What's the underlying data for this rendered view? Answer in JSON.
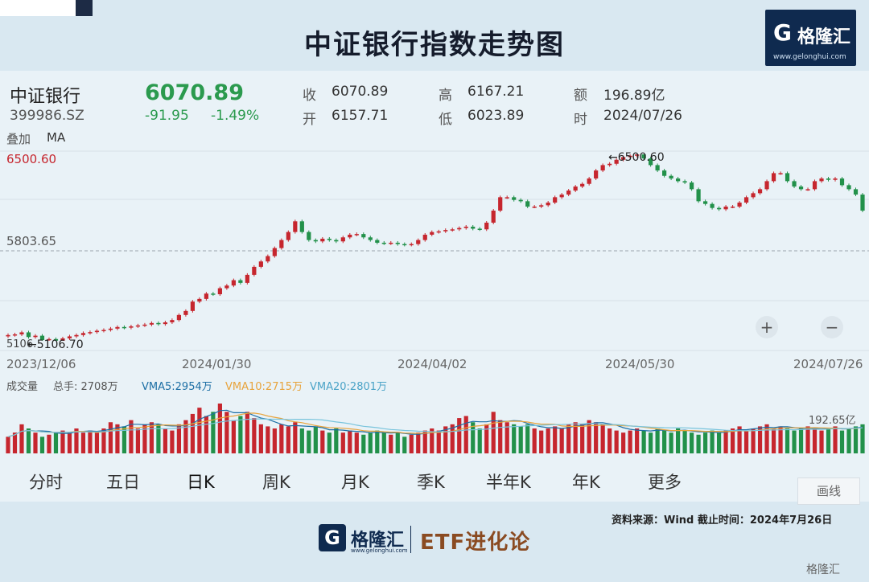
{
  "title": "中证银行指数走势图",
  "brand": {
    "mark": "G",
    "name": "格隆汇",
    "url": "www.gelonghui.com"
  },
  "quote": {
    "name": "中证银行",
    "code": "399986.SZ",
    "price": "6070.89",
    "change": "-91.95",
    "change_pct": "-1.49%",
    "close_label": "收",
    "close": "6070.89",
    "high_label": "高",
    "high": "6167.21",
    "amount_label": "额",
    "amount": "196.89亿",
    "open_label": "开",
    "open": "6157.71",
    "low_label": "低",
    "low": "6023.89",
    "time_label": "时",
    "time": "2024/07/26",
    "overlay_label": "叠加",
    "ma_label": "MA"
  },
  "colors": {
    "up": "#c6262e",
    "down": "#22914a",
    "vma5": "#1d6fa5",
    "vma10": "#e8a33b",
    "vma20": "#79c4dc"
  },
  "chart_data": {
    "type": "candlestick",
    "ylim": [
      5106.7,
      6500.6
    ],
    "ytick_labels": [
      "6500.60",
      "5803.65"
    ],
    "x_labels": [
      "2023/12/06",
      "2024/01/30",
      "2024/04/02",
      "2024/05/30",
      "2024/07/26"
    ],
    "max_annotation": "←6500.60",
    "min_annotation": "←5106.70",
    "min_label_left": "5106.",
    "closes": [
      5150,
      5155,
      5170,
      5135,
      5145,
      5112,
      5120,
      5108,
      5125,
      5140,
      5150,
      5165,
      5172,
      5182,
      5188,
      5198,
      5210,
      5205,
      5215,
      5222,
      5228,
      5240,
      5232,
      5245,
      5262,
      5300,
      5330,
      5400,
      5420,
      5460,
      5455,
      5500,
      5520,
      5560,
      5540,
      5600,
      5660,
      5700,
      5740,
      5800,
      5860,
      5920,
      6000,
      5920,
      5860,
      5850,
      5870,
      5860,
      5850,
      5880,
      5900,
      5905,
      5880,
      5860,
      5840,
      5835,
      5840,
      5830,
      5825,
      5830,
      5860,
      5900,
      5920,
      5925,
      5935,
      5940,
      5950,
      5960,
      5945,
      5940,
      5990,
      6080,
      6180,
      6180,
      6160,
      6150,
      6110,
      6110,
      6120,
      6140,
      6180,
      6200,
      6230,
      6260,
      6280,
      6320,
      6380,
      6420,
      6430,
      6460,
      6480,
      6490,
      6500,
      6470,
      6420,
      6380,
      6340,
      6320,
      6300,
      6290,
      6240,
      6150,
      6130,
      6100,
      6090,
      6110,
      6110,
      6140,
      6180,
      6210,
      6240,
      6300,
      6360,
      6360,
      6300,
      6260,
      6240,
      6240,
      6300,
      6320,
      6310,
      6320,
      6270,
      6240,
      6200,
      6080
    ],
    "volume_total_label": "成交量",
    "volume_hand_label": "总手: 2708万",
    "vma5_label": "VMA5:2954万",
    "vma10_label": "VMA10:2715万",
    "vma20_label": "VMA20:2801万",
    "volume_max_label": "192.65亿",
    "volumes": [
      0.4,
      0.5,
      0.7,
      0.6,
      0.5,
      0.4,
      0.45,
      0.5,
      0.55,
      0.5,
      0.6,
      0.5,
      0.55,
      0.5,
      0.6,
      0.75,
      0.7,
      0.65,
      0.8,
      0.6,
      0.7,
      0.75,
      0.7,
      0.6,
      0.55,
      0.7,
      0.8,
      0.95,
      1.1,
      0.9,
      1.0,
      1.2,
      1.0,
      0.8,
      0.9,
      1.0,
      0.85,
      0.7,
      0.65,
      0.6,
      0.7,
      0.65,
      0.75,
      0.6,
      0.55,
      0.65,
      0.55,
      0.5,
      0.6,
      0.5,
      0.55,
      0.5,
      0.45,
      0.5,
      0.55,
      0.5,
      0.45,
      0.5,
      0.4,
      0.45,
      0.5,
      0.55,
      0.6,
      0.55,
      0.65,
      0.7,
      0.85,
      0.9,
      0.75,
      0.6,
      0.7,
      1.0,
      0.8,
      0.75,
      0.7,
      0.65,
      0.7,
      0.6,
      0.55,
      0.6,
      0.65,
      0.6,
      0.7,
      0.75,
      0.7,
      0.8,
      0.75,
      0.7,
      0.6,
      0.55,
      0.5,
      0.55,
      0.6,
      0.55,
      0.5,
      0.6,
      0.55,
      0.5,
      0.6,
      0.55,
      0.5,
      0.45,
      0.5,
      0.55,
      0.5,
      0.55,
      0.6,
      0.65,
      0.55,
      0.6,
      0.65,
      0.7,
      0.6,
      0.65,
      0.6,
      0.55,
      0.6,
      0.65,
      0.6,
      0.55,
      0.6,
      0.65,
      0.55,
      0.6,
      0.65,
      0.7
    ],
    "zoom_in": "+",
    "zoom_out": "−"
  },
  "tabs": [
    "分时",
    "五日",
    "日K",
    "周K",
    "月K",
    "季K",
    "半年K",
    "年K",
    "更多"
  ],
  "active_tab": "日K",
  "draw_button": "画线",
  "source": "资料来源：Wind  截止时间：2024年7月26日",
  "footer_logo": {
    "mark": "G",
    "name": "格隆汇",
    "url": "www.gelonghui.com",
    "etf": "ETF进化论"
  },
  "watermark": "格隆汇"
}
